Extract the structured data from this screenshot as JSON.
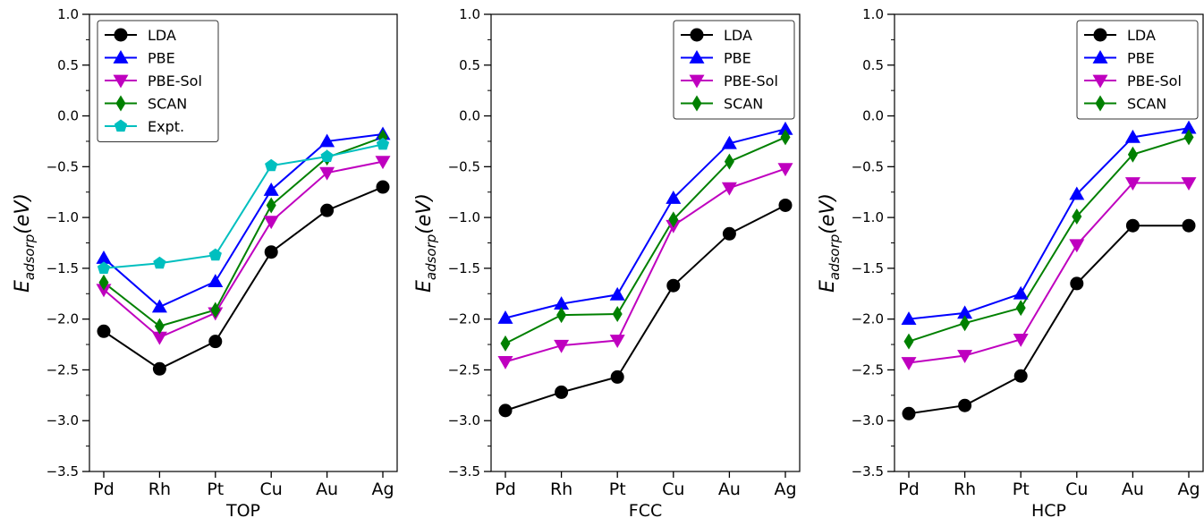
{
  "chart_data": [
    {
      "type": "line",
      "xlabel": "TOP",
      "ylabel_main": "E",
      "ylabel_sub": "adsorp",
      "ylabel_unit": "(eV)",
      "categories": [
        "Pd",
        "Rh",
        "Pt",
        "Cu",
        "Au",
        "Ag"
      ],
      "ylim": [
        -3.5,
        1.0
      ],
      "yticks": [
        "1.0",
        "0.5",
        "0.0",
        "−0.5",
        "−1.0",
        "−1.5",
        "−2.0",
        "−2.5",
        "−3.0",
        "−3.5"
      ],
      "legend_position": "top-left",
      "series": [
        {
          "name": "LDA",
          "color": "#000000",
          "marker": "circle",
          "values": [
            -2.12,
            -2.49,
            -2.22,
            -1.34,
            -0.93,
            -0.7
          ]
        },
        {
          "name": "PBE",
          "color": "#0000ff",
          "marker": "triangle-up",
          "values": [
            -1.4,
            -1.88,
            -1.63,
            -0.73,
            -0.25,
            -0.18
          ]
        },
        {
          "name": "PBE-Sol",
          "color": "#bf00bf",
          "marker": "triangle-down",
          "values": [
            -1.71,
            -2.18,
            -1.94,
            -1.04,
            -0.56,
            -0.45
          ]
        },
        {
          "name": "SCAN",
          "color": "#008000",
          "marker": "diamond",
          "values": [
            -1.64,
            -2.07,
            -1.91,
            -0.88,
            -0.41,
            -0.21
          ]
        },
        {
          "name": "Expt.",
          "color": "#00bfbf",
          "marker": "pentagon",
          "values": [
            -1.5,
            -1.45,
            -1.37,
            -0.49,
            -0.4,
            -0.28
          ]
        }
      ]
    },
    {
      "type": "line",
      "xlabel": "FCC",
      "ylabel_main": "E",
      "ylabel_sub": "adsorp",
      "ylabel_unit": "(eV)",
      "categories": [
        "Pd",
        "Rh",
        "Pt",
        "Cu",
        "Au",
        "Ag"
      ],
      "ylim": [
        -3.5,
        1.0
      ],
      "yticks": [
        "1.0",
        "0.5",
        "0.0",
        "−0.5",
        "−1.0",
        "−1.5",
        "−2.0",
        "−2.5",
        "−3.0",
        "−3.5"
      ],
      "legend_position": "top-right",
      "series": [
        {
          "name": "LDA",
          "color": "#000000",
          "marker": "circle",
          "values": [
            -2.9,
            -2.72,
            -2.57,
            -1.67,
            -1.16,
            -0.88
          ]
        },
        {
          "name": "PBE",
          "color": "#0000ff",
          "marker": "triangle-up",
          "values": [
            -1.99,
            -1.85,
            -1.76,
            -0.81,
            -0.27,
            -0.13
          ]
        },
        {
          "name": "PBE-Sol",
          "color": "#bf00bf",
          "marker": "triangle-down",
          "values": [
            -2.42,
            -2.26,
            -2.21,
            -1.08,
            -0.71,
            -0.52
          ]
        },
        {
          "name": "SCAN",
          "color": "#008000",
          "marker": "diamond",
          "values": [
            -2.24,
            -1.96,
            -1.95,
            -1.02,
            -0.45,
            -0.21
          ]
        }
      ]
    },
    {
      "type": "line",
      "xlabel": "HCP",
      "ylabel_main": "E",
      "ylabel_sub": "adsorp",
      "ylabel_unit": "(eV)",
      "categories": [
        "Pd",
        "Rh",
        "Pt",
        "Cu",
        "Au",
        "Ag"
      ],
      "ylim": [
        -3.5,
        1.0
      ],
      "yticks": [
        "1.0",
        "0.5",
        "0.0",
        "−0.5",
        "−1.0",
        "−1.5",
        "−2.0",
        "−2.5",
        "−3.0",
        "−3.5"
      ],
      "legend_position": "top-right",
      "series": [
        {
          "name": "LDA",
          "color": "#000000",
          "marker": "circle",
          "values": [
            -2.93,
            -2.85,
            -2.56,
            -1.65,
            -1.08,
            -1.08
          ]
        },
        {
          "name": "PBE",
          "color": "#0000ff",
          "marker": "triangle-up",
          "values": [
            -2.0,
            -1.94,
            -1.75,
            -0.77,
            -0.21,
            -0.12
          ]
        },
        {
          "name": "PBE-Sol",
          "color": "#bf00bf",
          "marker": "triangle-down",
          "values": [
            -2.43,
            -2.36,
            -2.2,
            -1.27,
            -0.66,
            -0.66
          ]
        },
        {
          "name": "SCAN",
          "color": "#008000",
          "marker": "diamond",
          "values": [
            -2.22,
            -2.04,
            -1.89,
            -0.99,
            -0.38,
            -0.21
          ]
        }
      ]
    }
  ]
}
